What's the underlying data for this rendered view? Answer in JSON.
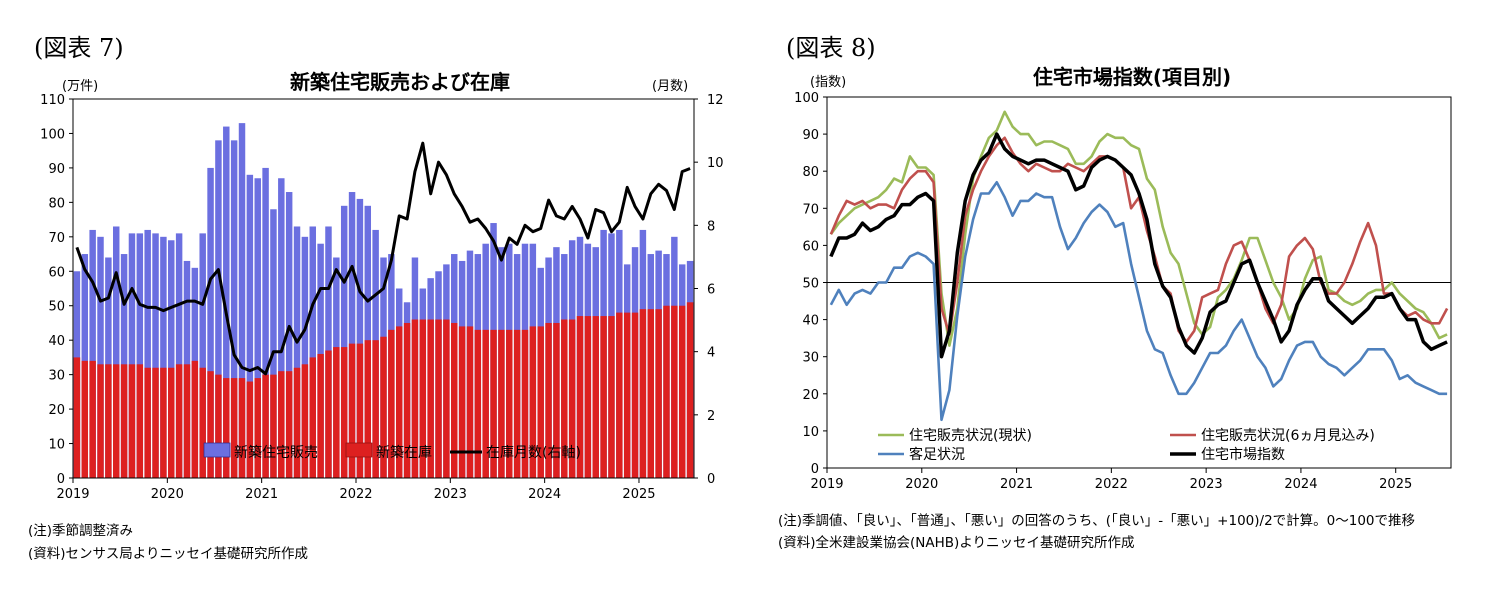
{
  "charts": [
    {
      "figure_label": "(図表 7)",
      "title": "新築住宅販売および在庫",
      "left_unit": "(万件)",
      "right_unit": "(月数)",
      "notes": [
        "(注)季節調整済み",
        "(資料)センサス局よりニッセイ基礎研究所作成"
      ]
    },
    {
      "figure_label": "(図表 8)",
      "title": "住宅市場指数(項目別)",
      "left_unit": "(指数)",
      "notes": [
        "(注)季調値、「良い」、「普通」、「悪い」の回答のうち、(「良い」-「悪い」+100)/2で計算。0〜100で推移",
        "(資料)全米建設業協会(NAHB)よりニッセイ基礎研究所作成"
      ]
    }
  ],
  "chart_data": [
    {
      "type": "bar",
      "title": "新築住宅販売および在庫",
      "x_start": "2019-01",
      "frequency": "monthly",
      "x_tick_labels": [
        "2019",
        "2020",
        "2021",
        "2022",
        "2023",
        "2024",
        "2025"
      ],
      "ylim": [
        0,
        110
      ],
      "y_ticks": [
        0,
        10,
        20,
        30,
        40,
        50,
        60,
        70,
        80,
        90,
        100,
        110
      ],
      "y2lim": [
        0,
        12
      ],
      "y2_ticks": [
        0,
        2,
        4,
        6,
        8,
        10,
        12
      ],
      "legend_position": "bottom",
      "colors": {
        "sales": "#6b6fe0",
        "inventory": "#dd2020",
        "months": "#000000"
      },
      "series": [
        {
          "name": "新築住宅販売",
          "axis": "left",
          "kind": "bar",
          "values": [
            60,
            65,
            72,
            70,
            64,
            73,
            65,
            71,
            71,
            72,
            71,
            70,
            69,
            71,
            63,
            61,
            71,
            90,
            98,
            102,
            98,
            103,
            88,
            87,
            90,
            78,
            87,
            83,
            73,
            70,
            73,
            68,
            73,
            64,
            79,
            83,
            81,
            79,
            72,
            64,
            65,
            55,
            51,
            64,
            55,
            58,
            60,
            62,
            65,
            63,
            66,
            65,
            68,
            74,
            67,
            68,
            65,
            68,
            68,
            61,
            64,
            67,
            65,
            69,
            70,
            68,
            67,
            72,
            71,
            72,
            62,
            67,
            72,
            65,
            66,
            65,
            70,
            62,
            63
          ]
        },
        {
          "name": "新築在庫",
          "axis": "left",
          "kind": "bar",
          "values": [
            35,
            34,
            34,
            33,
            33,
            33,
            33,
            33,
            33,
            32,
            32,
            32,
            32,
            33,
            33,
            34,
            32,
            31,
            30,
            29,
            29,
            29,
            28,
            29,
            30,
            30,
            31,
            31,
            32,
            33,
            35,
            36,
            37,
            38,
            38,
            39,
            39,
            40,
            40,
            41,
            43,
            44,
            45,
            46,
            46,
            46,
            46,
            46,
            45,
            44,
            44,
            43,
            43,
            43,
            43,
            43,
            43,
            43,
            44,
            44,
            45,
            45,
            46,
            46,
            47,
            47,
            47,
            47,
            47,
            48,
            48,
            48,
            49,
            49,
            49,
            50,
            50,
            50,
            51
          ]
        },
        {
          "name": "在庫月数(右軸)",
          "axis": "right",
          "kind": "line",
          "values": [
            7.3,
            6.6,
            6.2,
            5.6,
            5.7,
            6.5,
            5.5,
            6.0,
            5.5,
            5.4,
            5.4,
            5.3,
            5.4,
            5.5,
            5.6,
            5.6,
            5.5,
            6.3,
            6.6,
            5.2,
            3.9,
            3.5,
            3.4,
            3.5,
            3.3,
            4.0,
            4.0,
            4.8,
            4.3,
            4.7,
            5.5,
            6.0,
            6.0,
            6.6,
            6.2,
            6.7,
            5.9,
            5.6,
            5.8,
            6.0,
            6.9,
            8.3,
            8.2,
            9.7,
            10.6,
            9.0,
            10.0,
            9.6,
            9.0,
            8.6,
            8.1,
            8.2,
            7.9,
            7.5,
            6.9,
            7.6,
            7.4,
            8.0,
            7.8,
            7.9,
            8.8,
            8.3,
            8.2,
            8.6,
            8.2,
            7.6,
            8.5,
            8.4,
            7.8,
            8.1,
            9.2,
            8.6,
            8.2,
            9.0,
            9.3,
            9.1,
            8.5,
            9.7,
            9.8
          ]
        }
      ]
    },
    {
      "type": "line",
      "title": "住宅市場指数(項目別)",
      "x_start": "2019-01",
      "frequency": "monthly",
      "x_tick_labels": [
        "2019",
        "2020",
        "2021",
        "2022",
        "2023",
        "2024",
        "2025"
      ],
      "ylim": [
        0,
        100
      ],
      "y_ticks": [
        0,
        10,
        20,
        30,
        40,
        50,
        60,
        70,
        80,
        90,
        100
      ],
      "reference_line": 50,
      "legend_position": "bottom",
      "series": [
        {
          "name": "住宅販売状況(現状)",
          "color": "#9bbb59",
          "values": [
            63,
            66,
            68,
            70,
            71,
            72,
            73,
            75,
            78,
            77,
            84,
            81,
            81,
            79,
            47,
            33,
            43,
            63,
            78,
            84,
            89,
            91,
            96,
            92,
            90,
            90,
            87,
            88,
            88,
            87,
            86,
            82,
            82,
            84,
            88,
            90,
            89,
            89,
            87,
            86,
            78,
            75,
            65,
            58,
            55,
            47,
            39,
            36,
            38,
            46,
            48,
            51,
            56,
            62,
            62,
            56,
            50,
            46,
            40,
            43,
            51,
            56,
            57,
            48,
            47,
            45,
            44,
            45,
            47,
            48,
            48,
            50,
            47,
            45,
            43,
            42,
            39,
            35,
            36
          ]
        },
        {
          "name": "住宅販売状況(6ヵ月見込み)",
          "color": "#c0504d",
          "values": [
            63,
            68,
            72,
            71,
            72,
            70,
            71,
            71,
            70,
            75,
            78,
            80,
            80,
            77,
            43,
            36,
            50,
            68,
            75,
            80,
            84,
            87,
            89,
            85,
            82,
            80,
            82,
            81,
            80,
            80,
            82,
            81,
            80,
            82,
            84,
            84,
            83,
            81,
            70,
            73,
            64,
            57,
            49,
            47,
            37,
            34,
            37,
            46,
            47,
            48,
            55,
            60,
            61,
            56,
            50,
            43,
            39,
            44,
            57,
            60,
            62,
            59,
            50,
            47,
            47,
            50,
            55,
            61,
            66,
            60,
            47,
            47,
            43,
            41,
            42,
            40,
            39,
            39,
            43
          ]
        },
        {
          "name": "客足状況",
          "color": "#4f81bd",
          "values": [
            44,
            48,
            44,
            47,
            48,
            47,
            50,
            50,
            54,
            54,
            57,
            58,
            57,
            55,
            13,
            21,
            41,
            57,
            67,
            74,
            74,
            77,
            73,
            68,
            72,
            72,
            74,
            73,
            73,
            65,
            59,
            62,
            66,
            69,
            71,
            69,
            65,
            66,
            55,
            46,
            37,
            32,
            31,
            25,
            20,
            20,
            23,
            27,
            31,
            31,
            33,
            37,
            40,
            35,
            30,
            27,
            22,
            24,
            29,
            33,
            34,
            34,
            30,
            28,
            27,
            25,
            27,
            29,
            32,
            32,
            32,
            29,
            24,
            25,
            23,
            22,
            21,
            20,
            20
          ]
        },
        {
          "name": "住宅市場指数",
          "color": "#000000",
          "values": [
            57,
            62,
            62,
            63,
            66,
            64,
            65,
            67,
            68,
            71,
            71,
            73,
            74,
            72,
            30,
            37,
            58,
            72,
            79,
            83,
            85,
            90,
            86,
            84,
            83,
            82,
            83,
            83,
            82,
            81,
            80,
            75,
            76,
            81,
            83,
            84,
            83,
            81,
            79,
            74,
            67,
            55,
            49,
            46,
            38,
            33,
            31,
            35,
            42,
            44,
            45,
            50,
            55,
            56,
            50,
            45,
            40,
            34,
            37,
            44,
            48,
            51,
            51,
            45,
            43,
            41,
            39,
            41,
            43,
            46,
            46,
            47,
            43,
            40,
            40,
            34,
            32,
            33,
            34
          ]
        }
      ]
    }
  ]
}
